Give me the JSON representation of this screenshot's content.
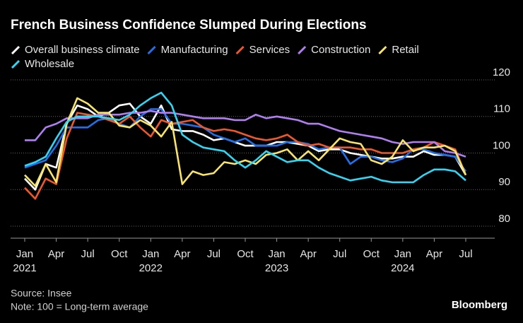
{
  "chart_data": {
    "type": "line",
    "title": "French Business Confidence Slumped During Elections",
    "source": "Source: Insee",
    "note": "Note: 100 = Long-term average",
    "brand": "Bloomberg",
    "categories": [
      "Jan 2021",
      null,
      null,
      "Apr",
      null,
      null,
      "Jul",
      null,
      null,
      "Oct",
      null,
      null,
      "Jan 2022",
      null,
      null,
      "Apr",
      null,
      null,
      "Jul",
      null,
      null,
      "Oct",
      null,
      null,
      "Jan 2023",
      null,
      null,
      "Apr",
      null,
      null,
      "Jul",
      null,
      null,
      "Oct",
      null,
      null,
      "Jan 2024",
      null,
      null,
      "Apr",
      null,
      null,
      "Jul"
    ],
    "ylim": [
      80,
      120
    ],
    "yticks": [
      80,
      90,
      100,
      110,
      120
    ],
    "grid": true,
    "y_axis_side": "right",
    "series": [
      {
        "name": "Overall business climate",
        "color": "#ffffff",
        "values": [
          93,
          90,
          97,
          96,
          108,
          113,
          112,
          110,
          111,
          113,
          113.5,
          110,
          108,
          113,
          106.5,
          106,
          106,
          105,
          103.5,
          104,
          103,
          102,
          102,
          102,
          103,
          103,
          102.5,
          102,
          100.5,
          101,
          101,
          100,
          99.5,
          99,
          98.5,
          98.5,
          99,
          99,
          100.5,
          99.5,
          99.5,
          99,
          94
        ]
      },
      {
        "name": "Manufacturing",
        "color": "#2170eb",
        "values": [
          96,
          97,
          98,
          102,
          107,
          107,
          107,
          109,
          109.5,
          108,
          107,
          110,
          112,
          112,
          108,
          108,
          107.5,
          107,
          105,
          104,
          103,
          104,
          102,
          102,
          102,
          103,
          103,
          102.5,
          101,
          101.5,
          101.5,
          97,
          99,
          99,
          98,
          97.5,
          98.5,
          101,
          101,
          100,
          99.5,
          99,
          95
        ]
      },
      {
        "name": "Services",
        "color": "#f0582a",
        "values": [
          90.5,
          87.5,
          93,
          91.5,
          104,
          111,
          110.5,
          110,
          109,
          108,
          110,
          107,
          104.5,
          109,
          108,
          108.5,
          109,
          107,
          106,
          106.5,
          106,
          105,
          104,
          103.5,
          104,
          105,
          103,
          102,
          102.5,
          101.5,
          101.5,
          101.5,
          101,
          101,
          100,
          100,
          100,
          101,
          101.5,
          103,
          102,
          101,
          94
        ]
      },
      {
        "name": "Construction",
        "color": "#b17ef2",
        "values": [
          103.5,
          103.5,
          107,
          108,
          109.5,
          109.5,
          109.5,
          110.5,
          110.5,
          110.5,
          111,
          111,
          111.5,
          111,
          111,
          110.5,
          110,
          109.5,
          109.5,
          109.5,
          109,
          109,
          110.5,
          109.5,
          110,
          109.5,
          109,
          108,
          108,
          107,
          106,
          105.5,
          105,
          104.5,
          104,
          103,
          102.5,
          103,
          103,
          103,
          100.5,
          100,
          99
        ]
      },
      {
        "name": "Retail",
        "color": "#f8e468",
        "values": [
          94,
          91,
          97,
          92,
          108,
          115,
          113.5,
          111,
          111,
          107.5,
          107,
          109,
          107.5,
          104.5,
          108.5,
          91.5,
          95,
          94,
          94.5,
          97.5,
          97,
          98,
          97,
          99.5,
          100,
          101,
          98,
          100.5,
          98,
          101,
          104,
          103,
          102.5,
          98,
          97,
          99,
          103.5,
          100.5,
          101.5,
          101.5,
          102,
          100.5,
          94
        ]
      },
      {
        "name": "Wholesale",
        "color": "#2fd6f5",
        "values": [
          96.5,
          97.5,
          99,
          104,
          108.5,
          110,
          110,
          110,
          109.5,
          109,
          110.5,
          113,
          115,
          116.5,
          113,
          105,
          103,
          101.5,
          101,
          100.5,
          98,
          96,
          98,
          100.5,
          99,
          97.5,
          98,
          98,
          96,
          94.5,
          93.5,
          92.5,
          93,
          93.5,
          92.5,
          92,
          92,
          92,
          94,
          95.5,
          95.5,
          95,
          92.5
        ]
      }
    ]
  }
}
